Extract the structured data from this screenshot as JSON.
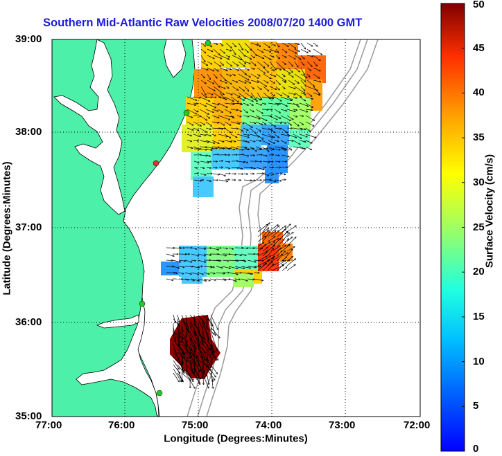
{
  "title": "Southern Mid-Atlantic Raw Velocities 2008/07/20 1400 GMT",
  "map": {
    "xlabel": "Longitude (Degrees:Minutes)",
    "ylabel": "Latitude (Degrees:Minutes)",
    "x_ticks": [
      "77:00",
      "76:00",
      "75:00",
      "74:00",
      "73:00",
      "72:00"
    ],
    "y_ticks": [
      "39:00",
      "38:00",
      "37:00",
      "36:00",
      "35:00"
    ],
    "land_color": "#4df0a8",
    "grid": "dotted"
  },
  "colorbar": {
    "title": "Surface Velocity (cm/s)",
    "min": 0,
    "max": 50,
    "ticks": [
      "0",
      "5",
      "10",
      "15",
      "20",
      "25",
      "30",
      "35",
      "40",
      "45",
      "50"
    ],
    "colormap": "jet"
  }
}
